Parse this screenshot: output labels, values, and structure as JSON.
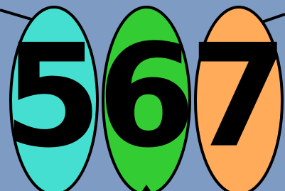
{
  "balloons": [
    {
      "label": "5"
    },
    {
      "label": "6"
    },
    {
      "label": "7"
    }
  ]
}
